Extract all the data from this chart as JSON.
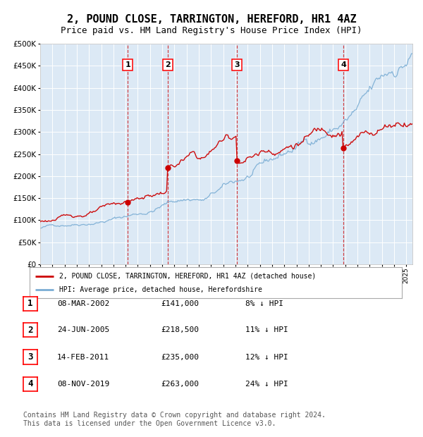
{
  "title": "2, POUND CLOSE, TARRINGTON, HEREFORD, HR1 4AZ",
  "subtitle": "Price paid vs. HM Land Registry's House Price Index (HPI)",
  "title_fontsize": 11,
  "subtitle_fontsize": 9,
  "plot_bg_color": "#dce9f5",
  "fig_bg_color": "#ffffff",
  "hpi_line_color": "#7aadd4",
  "price_line_color": "#cc0000",
  "marker_color": "#cc0000",
  "vline_color": "#cc0000",
  "ylim": [
    0,
    500000
  ],
  "ytick_step": 50000,
  "legend_label_price": "2, POUND CLOSE, TARRINGTON, HEREFORD, HR1 4AZ (detached house)",
  "legend_label_hpi": "HPI: Average price, detached house, Herefordshire",
  "transactions": [
    {
      "num": 1,
      "date": "08-MAR-2002",
      "price": 141000,
      "pct": "8%",
      "x_year": 2002.19
    },
    {
      "num": 2,
      "date": "24-JUN-2005",
      "price": 218500,
      "pct": "11%",
      "x_year": 2005.48
    },
    {
      "num": 3,
      "date": "14-FEB-2011",
      "price": 235000,
      "pct": "12%",
      "x_year": 2011.12
    },
    {
      "num": 4,
      "date": "08-NOV-2019",
      "price": 263000,
      "pct": "24%",
      "x_year": 2019.85
    }
  ],
  "footer": "Contains HM Land Registry data © Crown copyright and database right 2024.\nThis data is licensed under the Open Government Licence v3.0.",
  "footer_fontsize": 7,
  "xmin": 1995.0,
  "xmax": 2025.5
}
